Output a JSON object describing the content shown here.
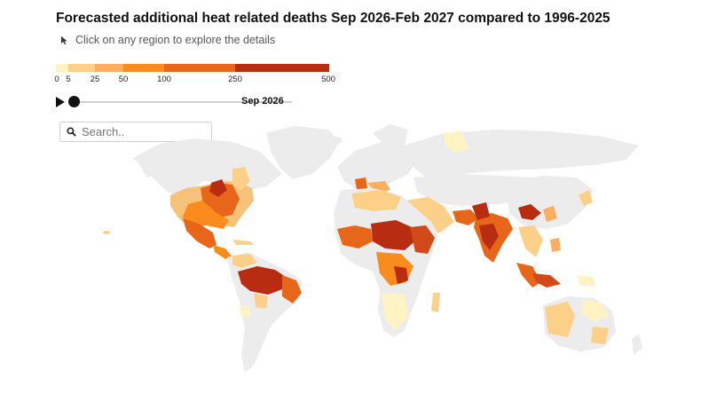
{
  "header": {
    "title": "Forecasted additional heat related deaths Sep 2026-Feb 2027 compared to 1996-2025",
    "hint": "Click on any region to explore the details"
  },
  "legend": {
    "thresholds": [
      "0",
      "5",
      "25",
      "50",
      "100",
      "250",
      "500"
    ],
    "colors": [
      "#fff3c4",
      "#fdd08a",
      "#fdae61",
      "#fa8c1e",
      "#e8661a",
      "#d2491a",
      "#b82c12"
    ]
  },
  "player": {
    "date": "Sep 2026"
  },
  "search": {
    "placeholder": "Search.."
  },
  "map": {
    "base_color": "#ececec"
  }
}
